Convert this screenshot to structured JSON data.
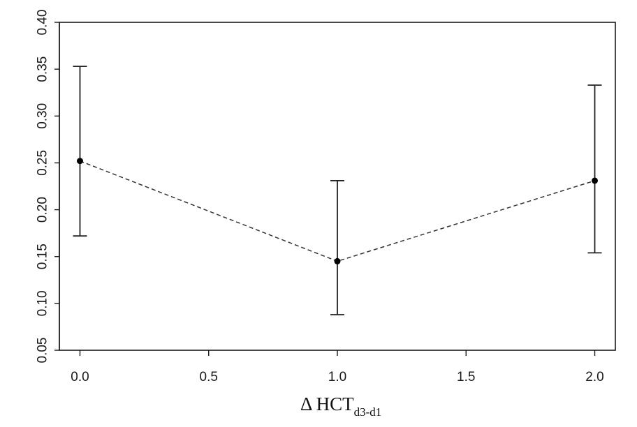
{
  "chart_data": {
    "type": "scatter",
    "title": "",
    "xlabel": {
      "main": "Δ HCT",
      "subscript": "d3-d1"
    },
    "ylabel": "",
    "xlim": [
      -0.08,
      2.08
    ],
    "ylim": [
      0.05,
      0.4
    ],
    "xticks": [
      0.0,
      0.5,
      1.0,
      1.5,
      2.0
    ],
    "xtick_labels": [
      "0.0",
      "0.5",
      "1.0",
      "1.5",
      "2.0"
    ],
    "yticks": [
      0.05,
      0.1,
      0.15,
      0.2,
      0.25,
      0.3,
      0.35,
      0.4
    ],
    "ytick_labels": [
      "0.05",
      "0.10",
      "0.15",
      "0.20",
      "0.25",
      "0.30",
      "0.35",
      "0.40"
    ],
    "grid": false,
    "legend": "none",
    "connector_line": "dashed",
    "points": [
      {
        "x": 0.0,
        "y": 0.252,
        "lower": 0.172,
        "upper": 0.353
      },
      {
        "x": 1.0,
        "y": 0.145,
        "lower": 0.088,
        "upper": 0.231
      },
      {
        "x": 2.0,
        "y": 0.231,
        "lower": 0.154,
        "upper": 0.333
      }
    ]
  },
  "colors": {
    "axis": "#1a1a1a",
    "point": "#000000",
    "errorbar": "#222222",
    "dashed_line": "#333333"
  }
}
